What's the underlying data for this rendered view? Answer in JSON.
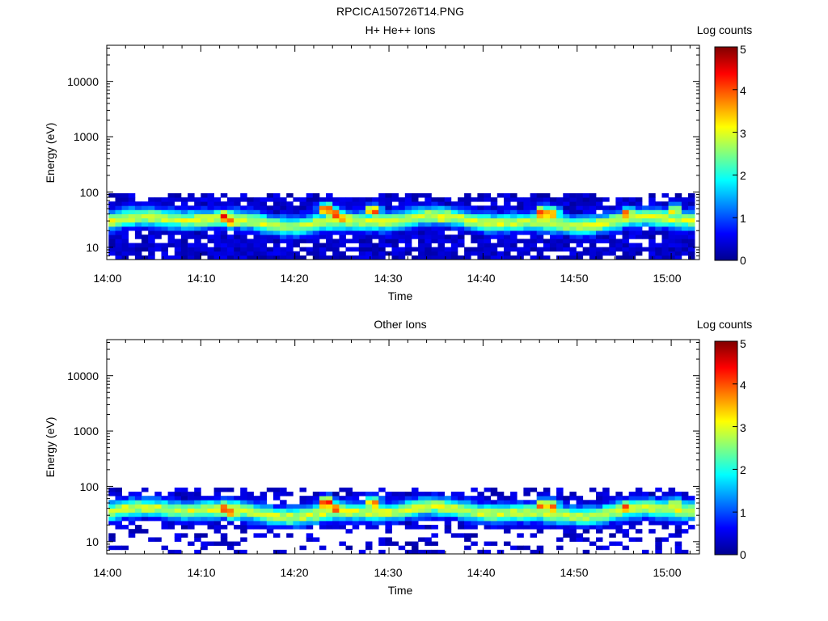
{
  "figure_title": "RPCICA150726T14.PNG",
  "colors": {
    "colormap": [
      "#00008f",
      "#0000ff",
      "#0080ff",
      "#00ffff",
      "#80ff80",
      "#ffff00",
      "#ff8000",
      "#ff0000",
      "#800000"
    ],
    "axis": "#000000",
    "background": "#ffffff"
  },
  "chart_data": [
    {
      "type": "heatmap",
      "title": "H+ He++ Ions",
      "xlabel": "Time",
      "ylabel": "Energy (eV)",
      "xlim": [
        "14:00",
        "15:03"
      ],
      "ylim": [
        6,
        45000
      ],
      "yscale": "log",
      "x_ticks": [
        "14:00",
        "14:10",
        "14:20",
        "14:30",
        "14:40",
        "14:50",
        "15:00"
      ],
      "y_ticks": [
        "10",
        "100",
        "1000",
        "10000"
      ],
      "colorbar": {
        "label": "Log counts",
        "range": [
          0,
          5
        ],
        "ticks": [
          "0",
          "1",
          "2",
          "3",
          "4",
          "5"
        ]
      },
      "energy_range_ev": [
        6,
        95
      ],
      "peak_energy_ev": 30,
      "hotspots": [
        {
          "time": "14:12",
          "energy_ev": 35,
          "log_counts": 4.6
        },
        {
          "time": "14:13",
          "energy_ev": 30,
          "log_counts": 4.2
        },
        {
          "time": "14:23",
          "energy_ev": 48,
          "log_counts": 4.7
        },
        {
          "time": "14:24",
          "energy_ev": 38,
          "log_counts": 4.4
        },
        {
          "time": "14:25",
          "energy_ev": 33,
          "log_counts": 4.0
        },
        {
          "time": "14:28",
          "energy_ev": 45,
          "log_counts": 4.3
        },
        {
          "time": "14:35",
          "energy_ev": 35,
          "log_counts": 3.5
        },
        {
          "time": "14:46",
          "energy_ev": 42,
          "log_counts": 4.4
        },
        {
          "time": "14:47",
          "energy_ev": 40,
          "log_counts": 4.0
        },
        {
          "time": "14:55",
          "energy_ev": 40,
          "log_counts": 4.1
        },
        {
          "time": "15:00",
          "energy_ev": 45,
          "log_counts": 3.5
        }
      ]
    },
    {
      "type": "heatmap",
      "title": "Other Ions",
      "xlabel": "Time",
      "ylabel": "Energy (eV)",
      "xlim": [
        "14:00",
        "15:03"
      ],
      "ylim": [
        6,
        45000
      ],
      "yscale": "log",
      "x_ticks": [
        "14:00",
        "14:10",
        "14:20",
        "14:30",
        "14:40",
        "14:50",
        "15:00"
      ],
      "y_ticks": [
        "10",
        "100",
        "1000",
        "10000"
      ],
      "colorbar": {
        "label": "Log counts",
        "range": [
          0,
          5
        ],
        "ticks": [
          "0",
          "1",
          "2",
          "3",
          "4",
          "5"
        ]
      },
      "energy_range_ev": [
        6,
        95
      ],
      "peak_energy_ev": 35,
      "hotspots": [
        {
          "time": "14:12",
          "energy_ev": 40,
          "log_counts": 4.5
        },
        {
          "time": "14:13",
          "energy_ev": 33,
          "log_counts": 4.2
        },
        {
          "time": "14:23",
          "energy_ev": 50,
          "log_counts": 4.8
        },
        {
          "time": "14:24",
          "energy_ev": 40,
          "log_counts": 4.3
        },
        {
          "time": "14:28",
          "energy_ev": 50,
          "log_counts": 4.1
        },
        {
          "time": "14:35",
          "energy_ev": 40,
          "log_counts": 3.4
        },
        {
          "time": "14:46",
          "energy_ev": 45,
          "log_counts": 4.4
        },
        {
          "time": "14:47",
          "energy_ev": 42,
          "log_counts": 4.0
        },
        {
          "time": "14:55",
          "energy_ev": 42,
          "log_counts": 4.2
        },
        {
          "time": "15:00",
          "energy_ev": 48,
          "log_counts": 3.4
        }
      ]
    }
  ]
}
